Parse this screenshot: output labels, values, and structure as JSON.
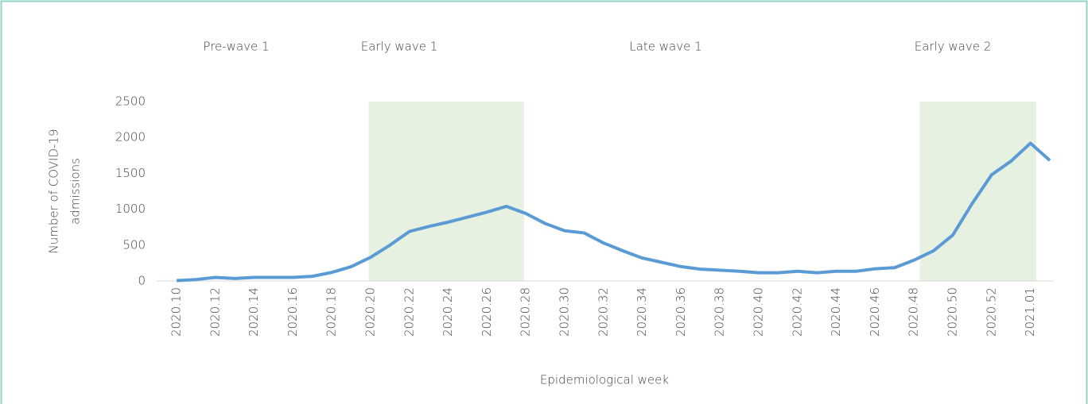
{
  "chart_data": {
    "type": "line",
    "x_label": "Epidemiological week",
    "y_label": [
      "Number of COVID-19",
      "admissions"
    ],
    "annotations": [
      "Pre-wave 1",
      "Early wave 1",
      "Late wave 1",
      "Early wave 2"
    ],
    "categories": [
      "2020.10",
      null,
      "2020.12",
      null,
      "2020.14",
      null,
      "2020.16",
      null,
      "2020.18",
      null,
      "2020.20",
      null,
      "2020.22",
      null,
      "2020.24",
      null,
      "2020.26",
      null,
      "2020.28",
      null,
      "2020.30",
      null,
      "2020.32",
      null,
      "2020.34",
      null,
      "2020.36",
      null,
      "2020.38",
      null,
      "2020.40",
      null,
      "2020.42",
      null,
      "2020.44",
      null,
      "2020.46",
      null,
      "2020.48",
      null,
      "2020.50",
      null,
      "2020.52",
      null,
      "2021.01",
      null
    ],
    "series": [
      {
        "color": "#5b9bd5",
        "values": [
          5,
          20,
          50,
          35,
          50,
          50,
          50,
          65,
          120,
          200,
          330,
          500,
          690,
          760,
          820,
          890,
          960,
          1040,
          940,
          800,
          700,
          670,
          530,
          420,
          320,
          260,
          200,
          165,
          150,
          135,
          115,
          115,
          135,
          115,
          135,
          135,
          170,
          185,
          290,
          420,
          640,
          1080,
          1480,
          1670,
          1920,
          1680
        ]
      }
    ],
    "ylim": [
      0,
      2500
    ],
    "yticks": [
      0,
      500,
      1000,
      1500,
      2000,
      2500
    ],
    "grid": false
  }
}
